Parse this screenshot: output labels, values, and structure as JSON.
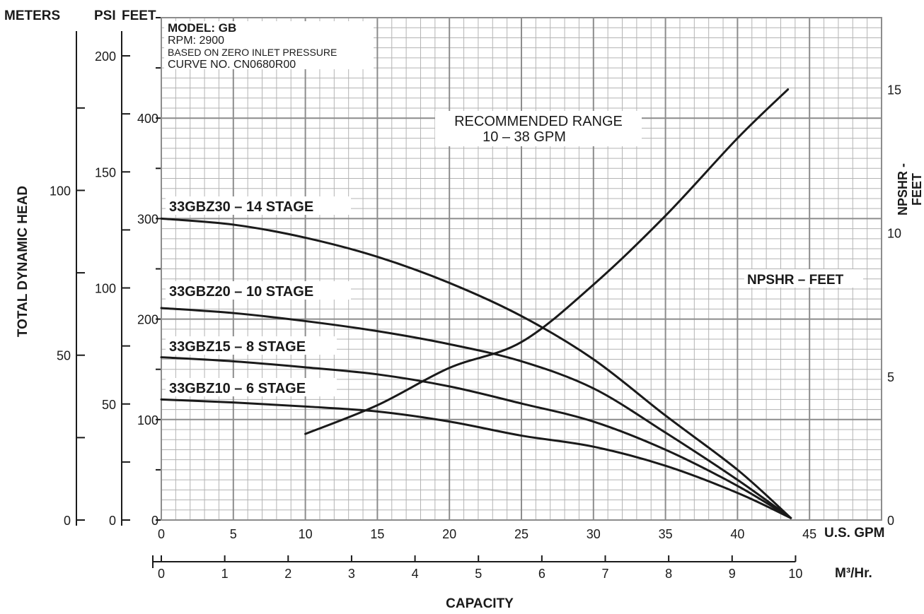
{
  "header": {
    "meters_label": "METERS",
    "psi_label": "PSI",
    "feet_label": "FEET"
  },
  "info_box": {
    "model": "MODEL: GB",
    "rpm": "RPM: 2900",
    "note": "BASED ON ZERO INLET PRESSURE",
    "curve_no": "CURVE NO. CN0680R00"
  },
  "recommended_range": {
    "line1": "RECOMMENDED RANGE",
    "line2": "10 – 38 GPM"
  },
  "axes": {
    "y_left_title": "TOTAL DYNAMIC HEAD",
    "y_right_title_line1": "NPSHR -",
    "y_right_title_line2": "FEET",
    "x_title": "CAPACITY",
    "x_unit_gpm": "U.S. GPM",
    "x_unit_m3": "M³/Hr.",
    "gpm_ticks": [
      0,
      5,
      10,
      15,
      20,
      25,
      30,
      35,
      40,
      45
    ],
    "m3_ticks": [
      0,
      1,
      2,
      3,
      4,
      5,
      6,
      7,
      8,
      9,
      10
    ],
    "feet_ticks": [
      0,
      100,
      200,
      300,
      400
    ],
    "npshr_ticks": [
      0,
      5,
      10,
      15
    ],
    "psi_ticks": [
      0,
      50,
      100,
      150,
      200
    ],
    "meters_ticks": [
      0,
      50,
      100
    ]
  },
  "chart_data": {
    "type": "line",
    "x_unit": "U.S. GPM",
    "xlim": [
      0,
      50
    ],
    "ylim_feet": [
      0,
      500
    ],
    "ylim_npshr_feet": [
      0,
      17.5
    ],
    "grid": true,
    "series": [
      {
        "name": "33GBZ30 – 14 STAGE",
        "axis": "feet",
        "points": [
          [
            0,
            300
          ],
          [
            5,
            294
          ],
          [
            10,
            281
          ],
          [
            15,
            262
          ],
          [
            20,
            236
          ],
          [
            25,
            203
          ],
          [
            30,
            160
          ],
          [
            35,
            104
          ],
          [
            40,
            50
          ],
          [
            43.7,
            2
          ]
        ]
      },
      {
        "name": "33GBZ20 – 10 STAGE",
        "axis": "feet",
        "points": [
          [
            0,
            211
          ],
          [
            5,
            206
          ],
          [
            10,
            198
          ],
          [
            15,
            188
          ],
          [
            20,
            175
          ],
          [
            25,
            158
          ],
          [
            30,
            131
          ],
          [
            35,
            87
          ],
          [
            40,
            40
          ],
          [
            43.7,
            2
          ]
        ]
      },
      {
        "name": "33GBZ15 – 8 STAGE",
        "axis": "feet",
        "points": [
          [
            0,
            162
          ],
          [
            5,
            158
          ],
          [
            10,
            152
          ],
          [
            15,
            145
          ],
          [
            20,
            133
          ],
          [
            25,
            116
          ],
          [
            30,
            98
          ],
          [
            35,
            70
          ],
          [
            40,
            34
          ],
          [
            43.7,
            2
          ]
        ]
      },
      {
        "name": "33GBZ10 – 6 STAGE",
        "axis": "feet",
        "points": [
          [
            0,
            120
          ],
          [
            5,
            117
          ],
          [
            10,
            113
          ],
          [
            15,
            108
          ],
          [
            20,
            98
          ],
          [
            25,
            84
          ],
          [
            30,
            73
          ],
          [
            35,
            54
          ],
          [
            40,
            27
          ],
          [
            43.7,
            2
          ]
        ]
      },
      {
        "name": "NPSHR – FEET",
        "axis": "npshr",
        "points": [
          [
            10,
            3.0
          ],
          [
            15,
            4.0
          ],
          [
            20,
            5.3
          ],
          [
            25,
            6.2
          ],
          [
            30,
            8.2
          ],
          [
            35,
            10.6
          ],
          [
            40,
            13.3
          ],
          [
            43.5,
            15.0
          ]
        ]
      }
    ]
  }
}
